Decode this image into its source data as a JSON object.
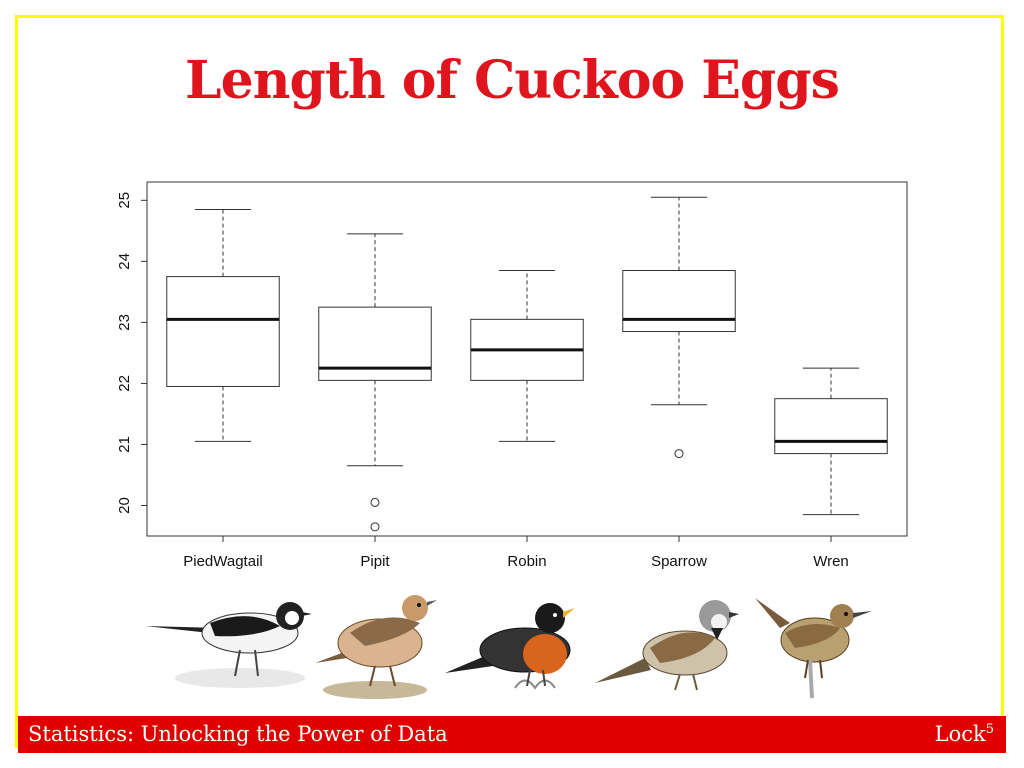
{
  "slide": {
    "title": "Length of Cuckoo Eggs",
    "footer_left": "Statistics: Unlocking the Power of Data",
    "footer_right": "Lock",
    "footer_right_sup": "5",
    "colors": {
      "title": "#e0141c",
      "frame": "#ffff00",
      "footer_bg": "#e00000"
    }
  },
  "chart_data": {
    "type": "boxplot",
    "title": "",
    "xlabel": "",
    "ylabel": "",
    "ylim": [
      19.5,
      25.3
    ],
    "yticks": [
      "20",
      "21",
      "22",
      "23",
      "24",
      "25"
    ],
    "categories": [
      "PiedWagtail",
      "Pipit",
      "Robin",
      "Sparrow",
      "Wren"
    ],
    "boxes": [
      {
        "name": "PiedWagtail",
        "whisker_low": 21.05,
        "q1": 21.95,
        "median": 23.05,
        "q3": 23.75,
        "whisker_high": 24.85,
        "outliers": []
      },
      {
        "name": "Pipit",
        "whisker_low": 20.65,
        "q1": 22.05,
        "median": 22.25,
        "q3": 23.25,
        "whisker_high": 24.45,
        "outliers": [
          20.05,
          19.65
        ]
      },
      {
        "name": "Robin",
        "whisker_low": 21.05,
        "q1": 22.05,
        "median": 22.55,
        "q3": 23.05,
        "whisker_high": 23.85,
        "outliers": []
      },
      {
        "name": "Sparrow",
        "whisker_low": 21.65,
        "q1": 22.85,
        "median": 23.05,
        "q3": 23.85,
        "whisker_high": 25.05,
        "outliers": [
          20.85
        ]
      },
      {
        "name": "Wren",
        "whisker_low": 19.85,
        "q1": 20.85,
        "median": 21.05,
        "q3": 21.75,
        "whisker_high": 22.25,
        "outliers": []
      }
    ]
  },
  "birds": [
    {
      "name": "pied-wagtail",
      "icon": "pied-wagtail-illustration"
    },
    {
      "name": "pipit",
      "icon": "pipit-illustration"
    },
    {
      "name": "robin",
      "icon": "robin-illustration"
    },
    {
      "name": "sparrow",
      "icon": "sparrow-illustration"
    },
    {
      "name": "wren",
      "icon": "wren-illustration"
    }
  ]
}
